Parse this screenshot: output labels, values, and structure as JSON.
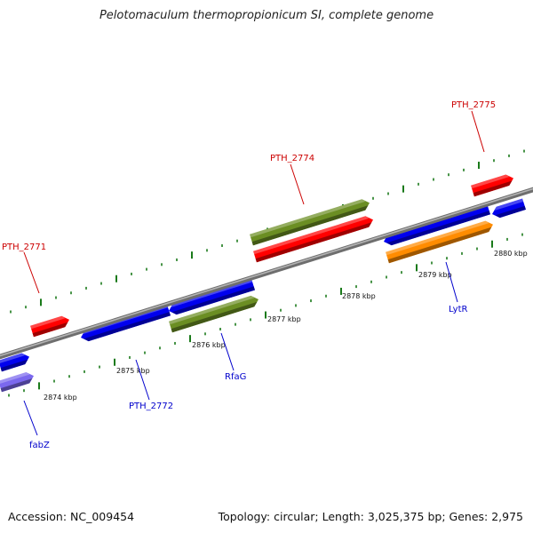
{
  "title": "Pelotomaculum thermopropionicum SI, complete genome",
  "accession": "Accession: NC_009454",
  "summary": "Topology: circular; Length: 3,025,375 bp; Genes: 2,975",
  "colors": {
    "backbone": "#8c8c8c",
    "ticks": "#1a7a1a",
    "label_red": "#cc0000",
    "label_blue": "#0000cc"
  },
  "ticks": [
    {
      "label": "2874 kbp"
    },
    {
      "label": "2875 kbp"
    },
    {
      "label": "2876 kbp"
    },
    {
      "label": "2877 kbp"
    },
    {
      "label": "2878 kbp"
    },
    {
      "label": "2879 kbp"
    },
    {
      "label": "2880 kbp"
    }
  ],
  "genes": [
    {
      "label": "PTH_2771",
      "color": "#ff0000"
    },
    {
      "label": "PTH_2774",
      "color": "#ff0000"
    },
    {
      "label": "PTH_2775",
      "color": "#ff0000"
    },
    {
      "label": "PTH_2772",
      "color": "#0000ee"
    },
    {
      "label": "RfaG",
      "color": "#6b8e23"
    },
    {
      "label": "LytR",
      "color": "#ff8c00"
    },
    {
      "label": "fabZ",
      "color": "#7b68ee"
    }
  ]
}
